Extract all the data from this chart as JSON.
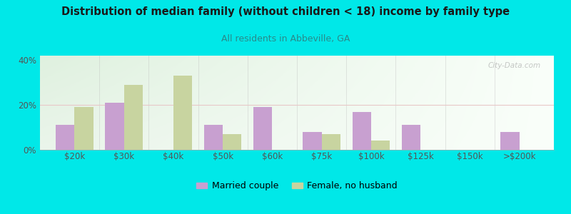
{
  "title": "Distribution of median family (without children < 18) income by family type",
  "subtitle": "All residents in Abbeville, GA",
  "categories": [
    "$20k",
    "$30k",
    "$40k",
    "$50k",
    "$60k",
    "$75k",
    "$100k",
    "$125k",
    "$150k",
    ">$200k"
  ],
  "married_couple": [
    11,
    21,
    0,
    11,
    19,
    8,
    17,
    11,
    0,
    8
  ],
  "female_no_husband": [
    19,
    29,
    33,
    7,
    0,
    7,
    4,
    0,
    0,
    0
  ],
  "married_color": "#c8a0d0",
  "female_color": "#c8d4a0",
  "bg_color": "#00e8e8",
  "title_color": "#1a1a1a",
  "subtitle_color": "#2a8a8a",
  "axis_label_color": "#555555",
  "ylim": [
    0,
    42
  ],
  "yticks": [
    0,
    20,
    40
  ],
  "bar_width": 0.38,
  "legend_married": "Married couple",
  "legend_female": "Female, no husband",
  "watermark": "City-Data.com",
  "ref_line_y": 20,
  "ref_line_color": "#e8c8c8"
}
